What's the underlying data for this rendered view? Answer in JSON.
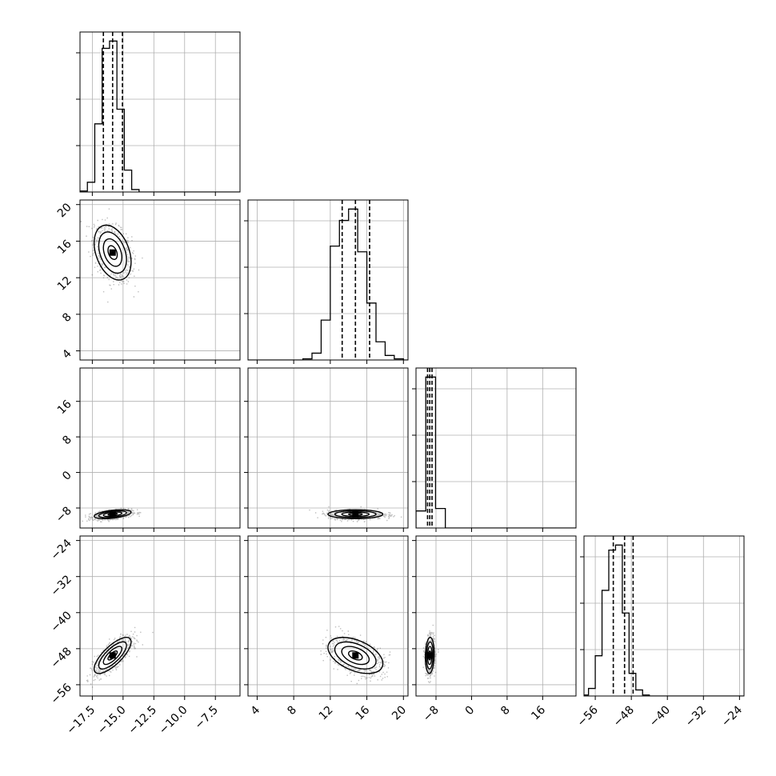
{
  "chart_data": {
    "type": "corner",
    "title": "",
    "grid": true,
    "parameters": [
      {
        "index": 0,
        "range": [
          -18.5,
          -5.5
        ],
        "ticks": [
          -17.5,
          -15.0,
          -12.5,
          -10.0,
          -7.5
        ],
        "tick_labels": [
          "−17.5",
          "−15.0",
          "−12.5",
          "−10.0",
          "−7.5"
        ],
        "quantiles": [
          -16.6,
          -15.85,
          -15.05
        ],
        "median": -15.85,
        "sd": 0.75
      },
      {
        "index": 1,
        "range": [
          3.0,
          20.5
        ],
        "ticks": [
          4,
          8,
          12,
          16,
          20
        ],
        "tick_labels": [
          "4",
          "8",
          "12",
          "16",
          "20"
        ],
        "quantiles": [
          13.3,
          14.75,
          16.3
        ],
        "median": 14.75,
        "sd": 1.5
      },
      {
        "index": 2,
        "range": [
          -12.5,
          23.5
        ],
        "ticks": [
          -8,
          0,
          8,
          16
        ],
        "tick_labels": [
          "−8",
          "0",
          "8",
          "16"
        ],
        "quantiles": [
          -9.9,
          -9.4,
          -8.9
        ],
        "median": -9.4,
        "sd": 0.5
      },
      {
        "index": 3,
        "range": [
          -58.5,
          -23.0
        ],
        "ticks": [
          -56,
          -48,
          -40,
          -32,
          -24
        ],
        "tick_labels": [
          "−56",
          "−48",
          "−40",
          "−32",
          "−24"
        ],
        "quantiles": [
          -52.0,
          -49.5,
          -47.6
        ],
        "median": -49.5,
        "sd": 2.0
      }
    ],
    "histograms": [
      {
        "param": 0,
        "bin_edges": [
          -18.5,
          -17.9,
          -17.3,
          -16.7,
          -16.1,
          -15.5,
          -14.9,
          -14.3,
          -13.7,
          -13.1,
          -12.5
        ],
        "counts": [
          2,
          20,
          140,
          295,
          310,
          170,
          45,
          5,
          0,
          0
        ]
      },
      {
        "param": 1,
        "bin_edges": [
          9.0,
          10.0,
          11.0,
          12.0,
          13.0,
          14.0,
          15.0,
          16.0,
          17.0,
          18.0,
          19.0,
          20.0
        ],
        "counts": [
          2,
          12,
          70,
          200,
          245,
          265,
          190,
          100,
          32,
          8,
          2
        ]
      },
      {
        "param": 2,
        "bin_edges": [
          -12.5,
          -10.3,
          -8.1,
          -5.9
        ],
        "counts": [
          35,
          310,
          40
        ]
      },
      {
        "param": 3,
        "bin_edges": [
          -59.0,
          -57.5,
          -56.0,
          -54.5,
          -53.0,
          -51.5,
          -50.0,
          -48.5,
          -47.0,
          -45.5,
          -44.0,
          -42.5
        ],
        "counts": [
          2,
          15,
          80,
          210,
          290,
          300,
          165,
          45,
          12,
          2,
          0
        ]
      }
    ],
    "pairs": [
      {
        "x": 0,
        "y": 1,
        "center": [
          -15.85,
          14.75
        ],
        "correlation": -0.35
      },
      {
        "x": 0,
        "y": 2,
        "center": [
          -15.85,
          -9.4
        ],
        "correlation": 0.45
      },
      {
        "x": 1,
        "y": 2,
        "center": [
          14.75,
          -9.4
        ],
        "correlation": 0.0
      },
      {
        "x": 0,
        "y": 3,
        "center": [
          -15.85,
          -49.5
        ],
        "correlation": 0.75
      },
      {
        "x": 1,
        "y": 3,
        "center": [
          14.75,
          -49.5
        ],
        "correlation": -0.45
      },
      {
        "x": 2,
        "y": 3,
        "center": [
          -9.4,
          -49.5
        ],
        "correlation": 0.1
      }
    ],
    "contour_levels_sigma": [
      0.5,
      1.0,
      1.5,
      2.0
    ]
  }
}
